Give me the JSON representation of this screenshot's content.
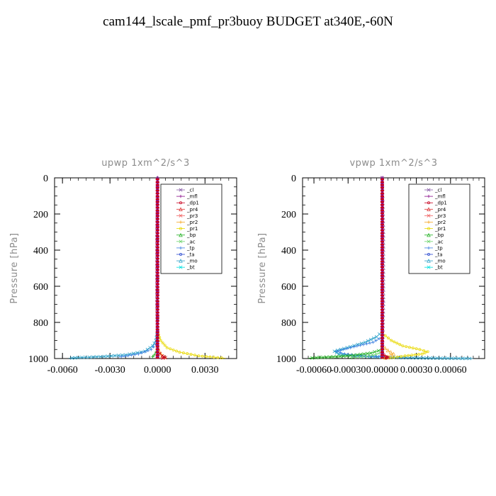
{
  "title": "cam144_lscale_pmf_pr3buoy  BUDGET at340E,-60N",
  "colors": {
    "_cl": "#8a5ea8",
    "_mfl": "#8b0d8b",
    "_dp1": "#c8001e",
    "_pr4": "#dc2b2b",
    "_pr3": "#f06060",
    "_pr2": "#f5a623",
    "_pr1": "#e8d800",
    "_bp": "#22b022",
    "_ac": "#6cd46c",
    "_tp": "#3a7de0",
    "_ta": "#2a4ad0",
    "_mo": "#2aa0c8",
    "_bt": "#00e0e0"
  },
  "chart_data": [
    {
      "type": "line",
      "title": "upwp   1xm^2/s^3",
      "ylabel": "Pressure  [hPa]",
      "xlim": [
        -0.0065,
        0.005
      ],
      "ylim": [
        1000,
        0
      ],
      "xticks": [
        -0.006,
        -0.003,
        0.0,
        0.003
      ],
      "xtick_labels": [
        "-0.0060",
        "-0.0030",
        "0.0000",
        "0.0030"
      ],
      "yticks": [
        0,
        200,
        400,
        600,
        800,
        1000
      ],
      "legend": [
        "_cl",
        "_mfl",
        "_dp1",
        "_pr4",
        "_pr3",
        "_pr2",
        "_pr1",
        "_bp",
        "_ac",
        "_tp",
        "_ta",
        "_mo",
        "_bt"
      ],
      "legend_position": "top-right",
      "series": [
        {
          "name": "_mo",
          "x": [
            0,
            -0.0001,
            -0.0003,
            -0.0008,
            -0.002,
            -0.0036,
            -0.005,
            -0.0056
          ],
          "y": [
            850,
            900,
            930,
            960,
            980,
            990,
            995,
            998
          ]
        },
        {
          "name": "_tp",
          "x": [
            0,
            -0.0001,
            -0.0004,
            -0.0012,
            -0.0025
          ],
          "y": [
            880,
            920,
            950,
            975,
            993
          ]
        },
        {
          "name": "_pr1",
          "x": [
            0,
            0.0002,
            0.0006,
            0.0014,
            0.0026,
            0.0038,
            0.0043
          ],
          "y": [
            850,
            900,
            940,
            965,
            985,
            995,
            998
          ]
        },
        {
          "name": "_pr2",
          "x": [
            0,
            0.0001,
            0.0003,
            0.0006
          ],
          "y": [
            930,
            960,
            985,
            998
          ]
        },
        {
          "name": "_dp1",
          "x": [
            0,
            0.0003,
            0.0005,
            0.0002
          ],
          "y": [
            960,
            985,
            995,
            1000
          ]
        },
        {
          "name": "_bp",
          "x": [
            0,
            -0.0002,
            -0.0004
          ],
          "y": [
            950,
            980,
            998
          ]
        },
        {
          "name": "_cl",
          "x": [
            0,
            -5e-05,
            -5e-05,
            0,
            5e-05
          ],
          "y": [
            0,
            300,
            700,
            950,
            1000
          ]
        },
        {
          "name": "_mfl",
          "x": [
            0,
            0,
            0,
            0
          ],
          "y": [
            0,
            400,
            800,
            1000
          ]
        }
      ]
    },
    {
      "type": "line",
      "title": "vpwp   1xm^2/s^3",
      "ylabel": "Pressure  [hPa]",
      "xlim": [
        -0.0007,
        0.0009
      ],
      "ylim": [
        1000,
        0
      ],
      "xticks": [
        -0.0006,
        -0.0003,
        0.0,
        0.0003,
        0.0006
      ],
      "xtick_labels": [
        "-0.00060",
        "-0.00030",
        "0.00000",
        "0.00030",
        "0.00060"
      ],
      "yticks": [
        0,
        200,
        400,
        600,
        800,
        1000
      ],
      "legend": [
        "_cl",
        "_mfl",
        "_dp1",
        "_pr4",
        "_pr3",
        "_pr2",
        "_pr1",
        "_bp",
        "_ac",
        "_tp",
        "_ta",
        "_mo",
        "_bt"
      ],
      "legend_position": "top-right",
      "series": [
        {
          "name": "_mo",
          "x": [
            0,
            -5e-05,
            -0.00015,
            -0.00028,
            -0.00042,
            -0.00038,
            -0.00025,
            -0.0001,
            0.00015,
            0.00045,
            0.0008
          ],
          "y": [
            850,
            880,
            910,
            935,
            960,
            975,
            985,
            990,
            995,
            998,
            1000
          ]
        },
        {
          "name": "_tp",
          "x": [
            0,
            -8e-05,
            -0.00025,
            -0.0004,
            -0.00033,
            -0.00015,
            0
          ],
          "y": [
            880,
            910,
            935,
            960,
            975,
            985,
            990
          ]
        },
        {
          "name": "_pr1",
          "x": [
            0,
            8e-05,
            0.00018,
            0.00033,
            0.0004,
            0.00035,
            0.0002,
            0.0001,
            0
          ],
          "y": [
            860,
            900,
            930,
            950,
            962,
            975,
            985,
            995,
            1000
          ]
        },
        {
          "name": "_pr2",
          "x": [
            0,
            5e-05,
            0.0001,
            5e-05,
            0
          ],
          "y": [
            930,
            955,
            975,
            990,
            1000
          ]
        },
        {
          "name": "_bp",
          "x": [
            0,
            -0.0001,
            -0.00025,
            -0.0004,
            -0.00058,
            -0.00065
          ],
          "y": [
            950,
            970,
            982,
            990,
            995,
            998
          ]
        },
        {
          "name": "_ac",
          "x": [
            0,
            -8e-05,
            -0.0002,
            -0.0003
          ],
          "y": [
            965,
            982,
            993,
            998
          ]
        },
        {
          "name": "_dp1",
          "x": [
            0,
            3e-05,
            5e-05,
            2e-05
          ],
          "y": [
            970,
            988,
            995,
            1000
          ]
        },
        {
          "name": "_cl",
          "x": [
            0,
            1e-05,
            1e-05,
            0
          ],
          "y": [
            0,
            300,
            700,
            1000
          ]
        },
        {
          "name": "_mfl",
          "x": [
            0,
            0,
            0,
            0
          ],
          "y": [
            0,
            400,
            800,
            1000
          ]
        }
      ]
    }
  ]
}
